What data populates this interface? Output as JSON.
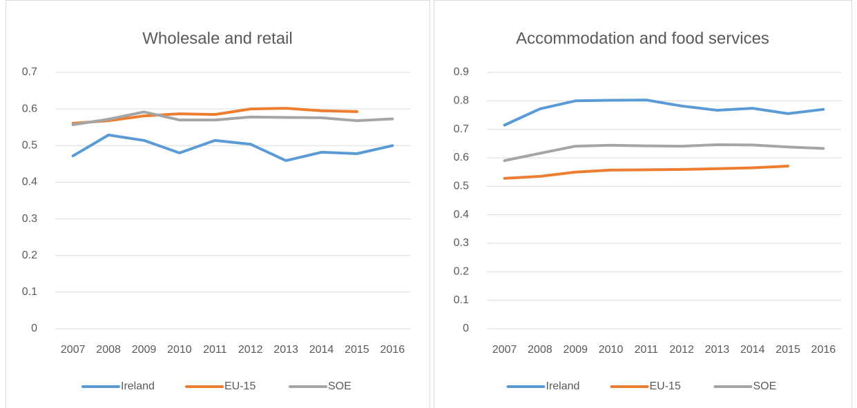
{
  "chart_data": [
    {
      "type": "line",
      "title": "Wholesale and retail",
      "categories": [
        "2007",
        "2008",
        "2009",
        "2010",
        "2011",
        "2012",
        "2013",
        "2014",
        "2015",
        "2016"
      ],
      "series": [
        {
          "name": "Ireland",
          "color": "#5b9bd5",
          "values": [
            0.472,
            0.529,
            0.514,
            0.48,
            0.514,
            0.504,
            0.459,
            0.482,
            0.478,
            0.5
          ]
        },
        {
          "name": "EU-15",
          "color": "#ed7d31",
          "values": [
            0.561,
            0.568,
            0.581,
            0.587,
            0.585,
            0.6,
            0.602,
            0.595,
            0.593,
            null
          ]
        },
        {
          "name": "SOE",
          "color": "#a5a5a5",
          "values": [
            0.557,
            0.572,
            0.592,
            0.57,
            0.57,
            0.578,
            0.577,
            0.576,
            0.568,
            0.573
          ]
        }
      ],
      "ylim": [
        0,
        0.7
      ],
      "yticks": [
        0,
        0.1,
        0.2,
        0.3,
        0.4,
        0.5,
        0.6,
        0.7
      ],
      "grid": true,
      "legend": "bottom"
    },
    {
      "type": "line",
      "title": "Accommodation and food services",
      "categories": [
        "2007",
        "2008",
        "2009",
        "2010",
        "2011",
        "2012",
        "2013",
        "2014",
        "2015",
        "2016"
      ],
      "series": [
        {
          "name": "Ireland",
          "color": "#5b9bd5",
          "values": [
            0.715,
            0.772,
            0.8,
            0.802,
            0.803,
            0.782,
            0.767,
            0.774,
            0.755,
            0.77
          ]
        },
        {
          "name": "EU-15",
          "color": "#ed7d31",
          "values": [
            0.528,
            0.535,
            0.55,
            0.557,
            0.558,
            0.559,
            0.562,
            0.565,
            0.571,
            null
          ]
        },
        {
          "name": "SOE",
          "color": "#a5a5a5",
          "values": [
            0.59,
            0.616,
            0.641,
            0.644,
            0.642,
            0.641,
            0.646,
            0.645,
            0.638,
            0.633
          ]
        }
      ],
      "ylim": [
        0,
        0.9
      ],
      "yticks": [
        0,
        0.1,
        0.2,
        0.3,
        0.4,
        0.5,
        0.6,
        0.7,
        0.8,
        0.9
      ],
      "grid": true,
      "legend": "bottom"
    }
  ]
}
